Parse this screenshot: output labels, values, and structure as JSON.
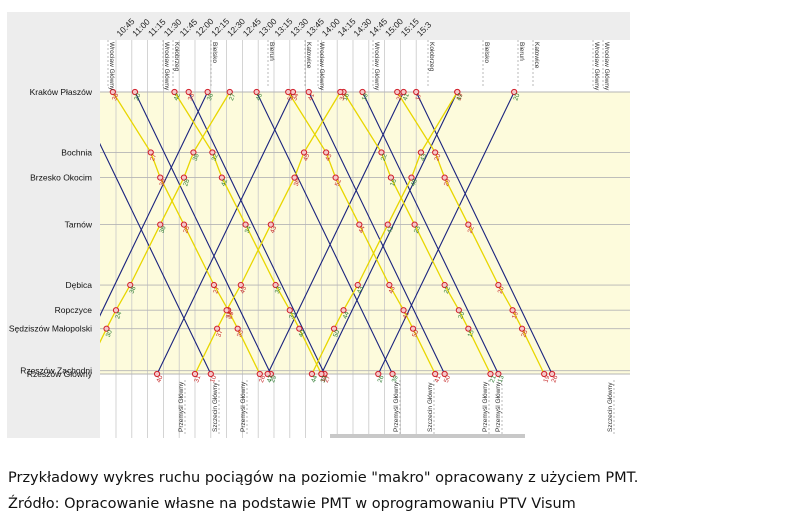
{
  "stations": [
    {
      "name": "Kraków Płaszów",
      "km": 0
    },
    {
      "name": "Bochnia",
      "km": 36
    },
    {
      "name": "Brzesko Okocim",
      "km": 51
    },
    {
      "name": "Tarnów",
      "km": 79
    },
    {
      "name": "Dębica",
      "km": 115
    },
    {
      "name": "Ropczyce",
      "km": 130
    },
    {
      "name": "Sędziszów Małopolski",
      "km": 141
    },
    {
      "name": "Rzeszów Zachodni",
      "km": 166
    },
    {
      "name": "Rzeszów Główny",
      "km": 168
    }
  ],
  "time_ticks": [
    "10:45",
    "11:00",
    "11:15",
    "11:30",
    "11:45",
    "12:00",
    "12:15",
    "12:30",
    "12:45",
    "13:00",
    "13:15",
    "13:30",
    "13:45",
    "14:00",
    "14:15",
    "14:30",
    "14:45",
    "15:00",
    "15:15",
    "15:3"
  ],
  "top_destinations": [
    "Wrocław Główny",
    "Wrocław Główny",
    "Kołobrzeg",
    "Bielsko",
    "Bieruń",
    "Katowice",
    "Wrocław Główny",
    "Wrocław Główny",
    "Kołobrzeg",
    "Bielsko",
    "Bieruń",
    "Katowice",
    "Wrocław Główny",
    "Wrocław Główny"
  ],
  "bottom_destinations": [
    "Przemyśl Główny",
    "Szczecin Główny",
    "Przemyśl Główny",
    "Przemyśl Główny",
    "Szczecin Główny",
    "Przemyśl Główny",
    "Przemyśl Główny",
    "Szczecin Główny"
  ],
  "colors": {
    "yellow_band": "#fdfbdc",
    "navy_line": "#1a237e",
    "yellow_line": "#e8d600",
    "header": "#ededed",
    "station_panel": "#ededed",
    "stop_marker": "#d11f2a",
    "arrival_label": "#2e7d32",
    "departure_label": "#c62828"
  },
  "captions": [
    "Przykładowy wykres ruchu pociągów na poziomie \"makro\" opracowany z użyciem PMT.",
    "Źródło: Opracowanie własne na podstawie PMT w oprogramowaniu PTV Visum"
  ]
}
